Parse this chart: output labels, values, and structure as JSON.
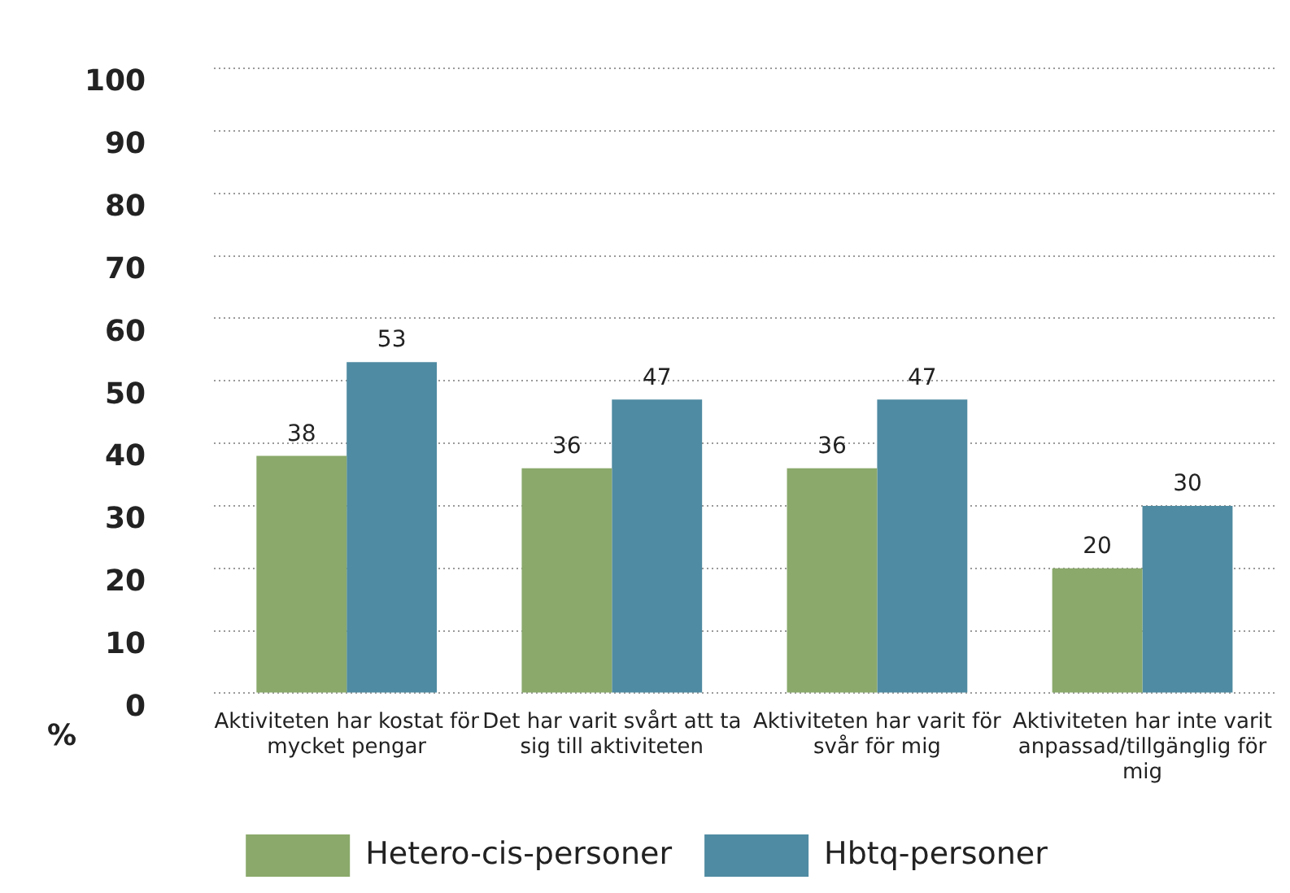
{
  "chart_data": {
    "type": "bar",
    "ylabel": "%",
    "categories": [
      "Aktiviteten har kostat för mycket pengar",
      "Det har varit svårt att ta sig till aktiviteten",
      "Aktiviteten har varit för svår för mig",
      "Aktiviteten har inte varit anpassad/tillgänglig för mig"
    ],
    "series": [
      {
        "name": "Hetero-cis-personer",
        "color": "#8aa96b",
        "values": [
          38,
          36,
          36,
          20
        ]
      },
      {
        "name": "Hbtq-personer",
        "color": "#4f8ba2",
        "values": [
          53,
          47,
          47,
          30
        ]
      }
    ],
    "ylim": [
      0,
      100
    ],
    "yticks": [
      0,
      10,
      20,
      30,
      40,
      50,
      60,
      70,
      80,
      90,
      100
    ],
    "grid": "y",
    "legend": "bottom",
    "data_labels": true
  }
}
